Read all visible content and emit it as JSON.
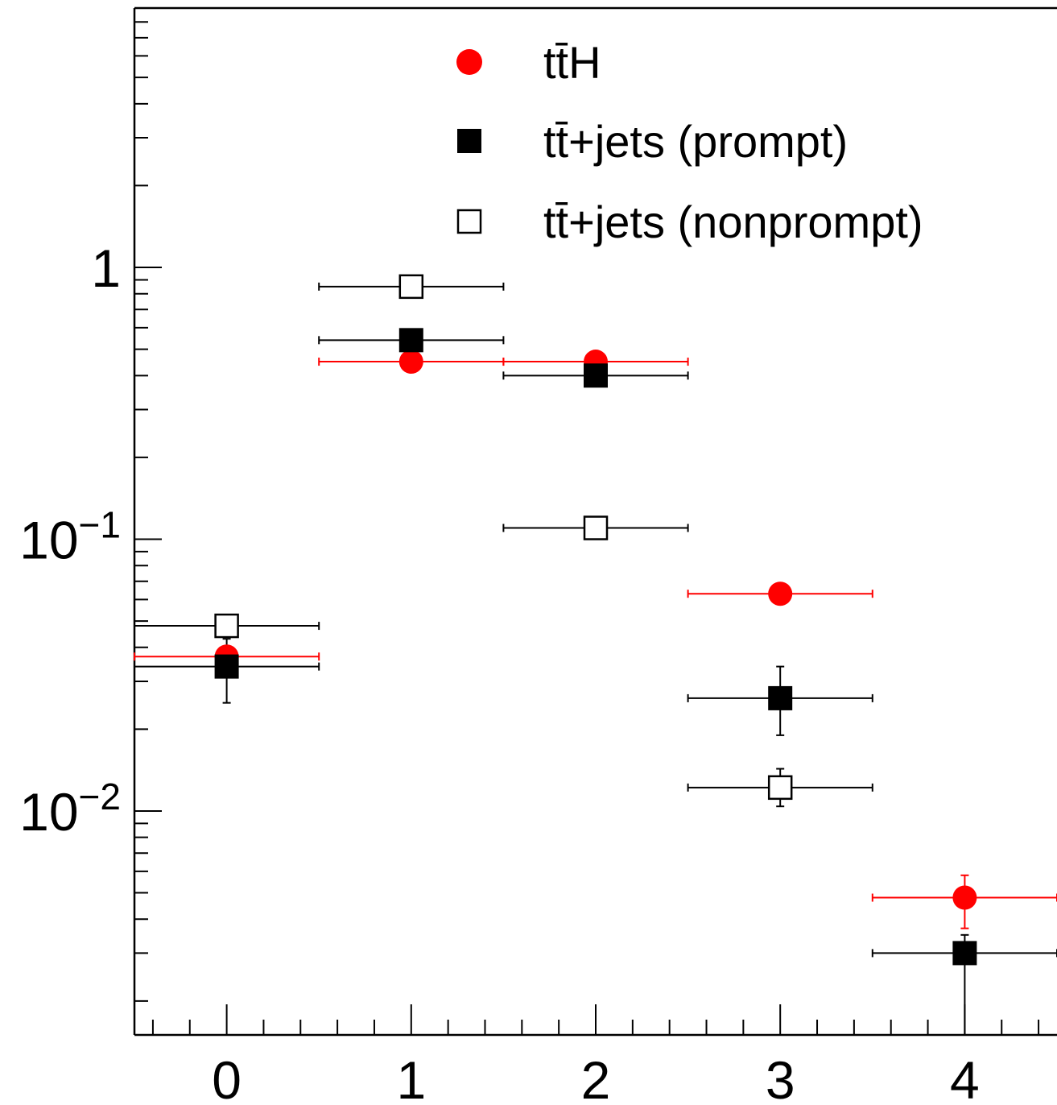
{
  "chart_data": {
    "type": "scatter",
    "title": "",
    "xlabel": "",
    "ylabel": "",
    "log_y": true,
    "xlim": [
      -0.5,
      4.5
    ],
    "ylim": [
      0.0015,
      9
    ],
    "grid": false,
    "legend_position": "top-right",
    "x_ticks": [
      {
        "value": 0,
        "label": "0"
      },
      {
        "value": 1,
        "label": "1"
      },
      {
        "value": 2,
        "label": "2"
      },
      {
        "value": 3,
        "label": "3"
      },
      {
        "value": 4,
        "label": "4"
      }
    ],
    "y_ticks": [
      {
        "value": 1,
        "label": "1",
        "exp": ""
      },
      {
        "value": 0.1,
        "label": "10",
        "exp": "−1"
      },
      {
        "value": 0.01,
        "label": "10",
        "exp": "−2"
      }
    ],
    "series": [
      {
        "name": "tt̄H",
        "marker": "circle",
        "color": "#ff0000",
        "errorbar_color": "#ff0000",
        "points": [
          {
            "x": 0,
            "y": 0.037,
            "ylo": 0.0365,
            "yhi": 0.0375
          },
          {
            "x": 1,
            "y": 0.45,
            "ylo": 0.445,
            "yhi": 0.455
          },
          {
            "x": 2,
            "y": 0.45,
            "ylo": 0.445,
            "yhi": 0.455
          },
          {
            "x": 3,
            "y": 0.063,
            "ylo": 0.062,
            "yhi": 0.064
          },
          {
            "x": 4,
            "y": 0.0048,
            "ylo": 0.0037,
            "yhi": 0.0058
          }
        ]
      },
      {
        "name": "tt̄+jets (prompt)",
        "marker": "square-filled",
        "color": "#000000",
        "errorbar_color": "#000000",
        "points": [
          {
            "x": 0,
            "y": 0.034,
            "ylo": 0.025,
            "yhi": 0.043
          },
          {
            "x": 1,
            "y": 0.54,
            "ylo": 0.53,
            "yhi": 0.55
          },
          {
            "x": 2,
            "y": 0.4,
            "ylo": 0.395,
            "yhi": 0.405
          },
          {
            "x": 3,
            "y": 0.026,
            "ylo": 0.019,
            "yhi": 0.034
          },
          {
            "x": 4,
            "y": 0.003,
            "ylo": 0.0005,
            "yhi": 0.0035
          }
        ]
      },
      {
        "name": "tt̄+jets (nonprompt)",
        "marker": "square-open",
        "color": "#000000",
        "errorbar_color": "#000000",
        "points": [
          {
            "x": 0,
            "y": 0.048,
            "ylo": 0.047,
            "yhi": 0.049
          },
          {
            "x": 1,
            "y": 0.85,
            "ylo": 0.84,
            "yhi": 0.86
          },
          {
            "x": 2,
            "y": 0.11,
            "ylo": 0.109,
            "yhi": 0.111
          },
          {
            "x": 3,
            "y": 0.0122,
            "ylo": 0.0104,
            "yhi": 0.0143
          }
        ]
      }
    ]
  }
}
